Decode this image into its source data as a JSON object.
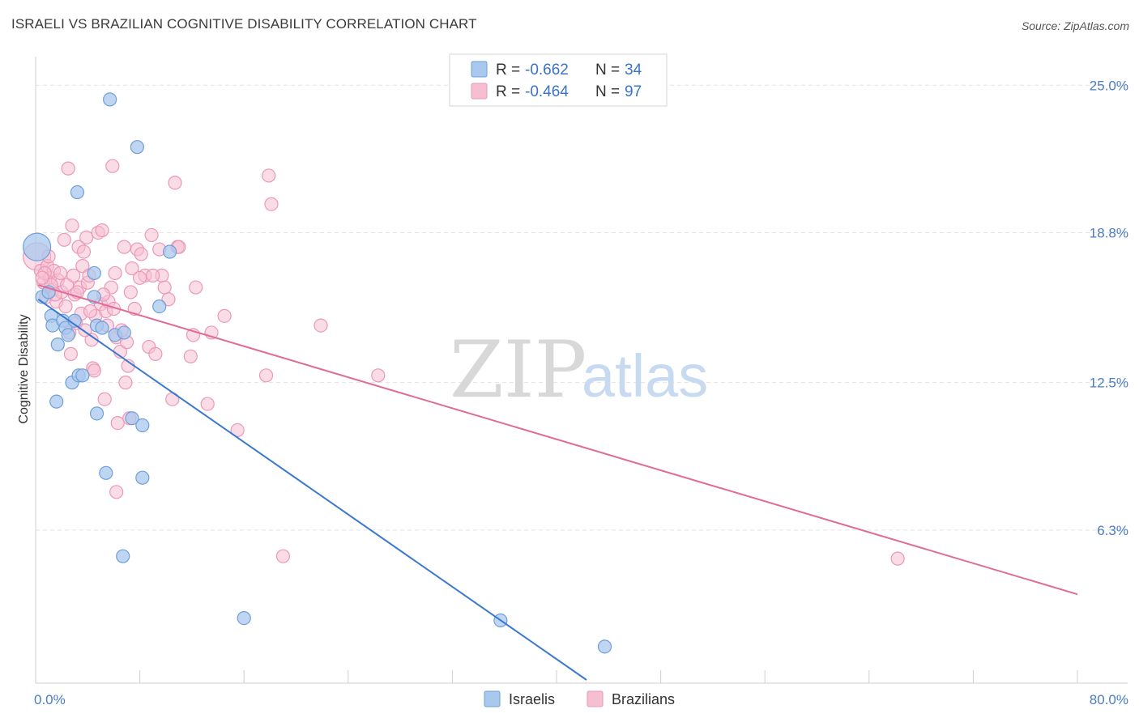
{
  "title": "ISRAELI VS BRAZILIAN COGNITIVE DISABILITY CORRELATION CHART",
  "source": "Source: ZipAtlas.com",
  "watermark": {
    "part1": "ZIP",
    "part2": "atlas"
  },
  "colors": {
    "israeli_fill": "#a9c8ee",
    "israeli_stroke": "#6f9fd8",
    "israeli_line": "#3a78d0",
    "brazilian_fill": "#f6bfd1",
    "brazilian_stroke": "#eb98b6",
    "brazilian_line": "#e06c96",
    "grid": "#e3e3e3",
    "tick_text": "#4a7cc7"
  },
  "legend": {
    "rows": [
      {
        "r_label": "R =",
        "r_value": "-0.662",
        "n_label": "N =",
        "n_value": "34"
      },
      {
        "r_label": "R =",
        "r_value": "-0.464",
        "n_label": "N =",
        "n_value": "97"
      }
    ]
  },
  "bottom_legend": {
    "israelis": "Israelis",
    "brazilians": "Brazilians"
  },
  "chart_data": {
    "type": "scatter",
    "title": "ISRAELI VS BRAZILIAN COGNITIVE DISABILITY CORRELATION CHART",
    "xlabel": "",
    "ylabel": "Cognitive Disability",
    "xlim": [
      0,
      80
    ],
    "ylim": [
      0,
      26.2
    ],
    "x_tick_labels": [
      "0.0%",
      "80.0%"
    ],
    "y_ticks": [
      6.3,
      12.5,
      18.8,
      25.0
    ],
    "y_tick_labels": [
      "6.3%",
      "12.5%",
      "18.8%",
      "25.0%"
    ],
    "grid": true,
    "legend_position": "top-center",
    "series": [
      {
        "name": "Israelis",
        "R": -0.662,
        "N": 34,
        "trend": {
          "x": [
            0.2,
            42.3
          ],
          "y": [
            16.0,
            0.0
          ]
        },
        "points": [
          {
            "x": 0.1,
            "y": 18.2,
            "big": true
          },
          {
            "x": 0.5,
            "y": 16.1
          },
          {
            "x": 1.2,
            "y": 15.3
          },
          {
            "x": 1.3,
            "y": 14.9
          },
          {
            "x": 1.7,
            "y": 14.1
          },
          {
            "x": 2.1,
            "y": 15.1
          },
          {
            "x": 2.3,
            "y": 14.8
          },
          {
            "x": 2.5,
            "y": 14.5
          },
          {
            "x": 2.8,
            "y": 12.5
          },
          {
            "x": 3.3,
            "y": 12.8
          },
          {
            "x": 3.6,
            "y": 12.8
          },
          {
            "x": 4.5,
            "y": 16.1
          },
          {
            "x": 4.7,
            "y": 14.9
          },
          {
            "x": 5.1,
            "y": 14.8
          },
          {
            "x": 4.7,
            "y": 11.2
          },
          {
            "x": 5.4,
            "y": 8.7
          },
          {
            "x": 6.1,
            "y": 14.5
          },
          {
            "x": 6.8,
            "y": 14.6
          },
          {
            "x": 7.4,
            "y": 11.0
          },
          {
            "x": 8.2,
            "y": 10.7
          },
          {
            "x": 8.2,
            "y": 8.5
          },
          {
            "x": 9.5,
            "y": 15.7
          },
          {
            "x": 10.3,
            "y": 18.0
          },
          {
            "x": 7.8,
            "y": 22.4
          },
          {
            "x": 5.7,
            "y": 24.4
          },
          {
            "x": 3.2,
            "y": 20.5
          },
          {
            "x": 4.5,
            "y": 17.1
          },
          {
            "x": 1.6,
            "y": 11.7
          },
          {
            "x": 6.7,
            "y": 5.2
          },
          {
            "x": 16.0,
            "y": 2.6
          },
          {
            "x": 35.7,
            "y": 2.5
          },
          {
            "x": 43.7,
            "y": 1.4
          },
          {
            "x": 1.0,
            "y": 16.3
          },
          {
            "x": 3.0,
            "y": 15.1
          }
        ]
      },
      {
        "name": "Brazilians",
        "R": -0.464,
        "N": 97,
        "trend": {
          "x": [
            0.2,
            80.0
          ],
          "y": [
            16.6,
            3.6
          ]
        },
        "points": [
          {
            "x": 0.1,
            "y": 17.8,
            "big": true
          },
          {
            "x": 0.4,
            "y": 17.2
          },
          {
            "x": 0.6,
            "y": 16.7
          },
          {
            "x": 0.8,
            "y": 16.1
          },
          {
            "x": 0.9,
            "y": 17.4
          },
          {
            "x": 1.1,
            "y": 16.9
          },
          {
            "x": 1.3,
            "y": 16.4
          },
          {
            "x": 1.4,
            "y": 17.2
          },
          {
            "x": 1.6,
            "y": 15.9
          },
          {
            "x": 1.7,
            "y": 16.8
          },
          {
            "x": 1.9,
            "y": 17.1
          },
          {
            "x": 2.0,
            "y": 16.3
          },
          {
            "x": 2.2,
            "y": 18.5
          },
          {
            "x": 2.4,
            "y": 16.6
          },
          {
            "x": 2.5,
            "y": 21.5
          },
          {
            "x": 2.6,
            "y": 14.6
          },
          {
            "x": 2.7,
            "y": 13.7
          },
          {
            "x": 2.8,
            "y": 19.1
          },
          {
            "x": 3.0,
            "y": 16.2
          },
          {
            "x": 3.1,
            "y": 15.0
          },
          {
            "x": 3.3,
            "y": 18.2
          },
          {
            "x": 3.4,
            "y": 16.5
          },
          {
            "x": 3.5,
            "y": 15.4
          },
          {
            "x": 3.6,
            "y": 17.4
          },
          {
            "x": 3.7,
            "y": 18.0
          },
          {
            "x": 3.9,
            "y": 18.6
          },
          {
            "x": 4.0,
            "y": 16.7
          },
          {
            "x": 4.1,
            "y": 17.0
          },
          {
            "x": 4.3,
            "y": 14.3
          },
          {
            "x": 4.4,
            "y": 13.1
          },
          {
            "x": 4.6,
            "y": 15.3
          },
          {
            "x": 4.8,
            "y": 18.8
          },
          {
            "x": 5.0,
            "y": 15.8
          },
          {
            "x": 5.1,
            "y": 18.9
          },
          {
            "x": 5.3,
            "y": 11.8
          },
          {
            "x": 5.4,
            "y": 15.5
          },
          {
            "x": 5.5,
            "y": 14.9
          },
          {
            "x": 5.6,
            "y": 15.9
          },
          {
            "x": 5.8,
            "y": 16.5
          },
          {
            "x": 5.9,
            "y": 21.6
          },
          {
            "x": 6.1,
            "y": 17.1
          },
          {
            "x": 6.2,
            "y": 14.4
          },
          {
            "x": 6.3,
            "y": 10.8
          },
          {
            "x": 6.5,
            "y": 13.8
          },
          {
            "x": 6.6,
            "y": 14.7
          },
          {
            "x": 6.8,
            "y": 18.2
          },
          {
            "x": 6.9,
            "y": 12.5
          },
          {
            "x": 7.1,
            "y": 13.2
          },
          {
            "x": 7.2,
            "y": 11.0
          },
          {
            "x": 7.3,
            "y": 16.3
          },
          {
            "x": 7.4,
            "y": 17.3
          },
          {
            "x": 7.6,
            "y": 15.6
          },
          {
            "x": 7.8,
            "y": 18.1
          },
          {
            "x": 8.1,
            "y": 17.9
          },
          {
            "x": 8.4,
            "y": 17.0
          },
          {
            "x": 8.7,
            "y": 14.0
          },
          {
            "x": 8.9,
            "y": 18.7
          },
          {
            "x": 9.2,
            "y": 13.7
          },
          {
            "x": 9.5,
            "y": 18.1
          },
          {
            "x": 9.7,
            "y": 17.0
          },
          {
            "x": 9.9,
            "y": 16.5
          },
          {
            "x": 10.2,
            "y": 16.0
          },
          {
            "x": 10.5,
            "y": 11.8
          },
          {
            "x": 10.7,
            "y": 20.9
          },
          {
            "x": 10.9,
            "y": 18.2
          },
          {
            "x": 11.9,
            "y": 13.6
          },
          {
            "x": 12.1,
            "y": 14.5
          },
          {
            "x": 12.3,
            "y": 16.5
          },
          {
            "x": 13.2,
            "y": 11.6
          },
          {
            "x": 13.5,
            "y": 14.6
          },
          {
            "x": 14.5,
            "y": 15.3
          },
          {
            "x": 15.5,
            "y": 10.5
          },
          {
            "x": 17.7,
            "y": 12.8
          },
          {
            "x": 17.9,
            "y": 21.2
          },
          {
            "x": 18.1,
            "y": 20.0
          },
          {
            "x": 19.0,
            "y": 5.2
          },
          {
            "x": 21.9,
            "y": 14.9
          },
          {
            "x": 26.3,
            "y": 12.8
          },
          {
            "x": 66.2,
            "y": 5.1
          },
          {
            "x": 6.2,
            "y": 7.9
          },
          {
            "x": 4.5,
            "y": 13.0
          },
          {
            "x": 1.0,
            "y": 17.8
          },
          {
            "x": 0.7,
            "y": 17.1
          },
          {
            "x": 1.2,
            "y": 16.6
          },
          {
            "x": 2.3,
            "y": 15.7
          },
          {
            "x": 3.8,
            "y": 14.7
          },
          {
            "x": 5.2,
            "y": 16.2
          },
          {
            "x": 1.5,
            "y": 16.2
          },
          {
            "x": 2.9,
            "y": 17.0
          },
          {
            "x": 3.2,
            "y": 16.3
          },
          {
            "x": 4.2,
            "y": 15.5
          },
          {
            "x": 6.0,
            "y": 15.6
          },
          {
            "x": 7.0,
            "y": 14.2
          },
          {
            "x": 8.0,
            "y": 16.9
          },
          {
            "x": 0.5,
            "y": 16.9
          },
          {
            "x": 9.0,
            "y": 17.0
          },
          {
            "x": 11.0,
            "y": 18.2
          }
        ]
      }
    ]
  }
}
